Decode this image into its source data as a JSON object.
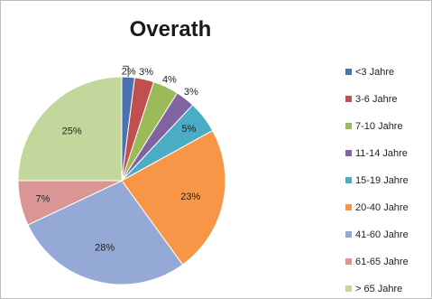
{
  "chart_data": {
    "type": "pie",
    "title": "Overath",
    "categories": [
      "<3 Jahre",
      "3-6 Jahre",
      "7-10 Jahre",
      "11-14 Jahre",
      "15-19 Jahre",
      "20-40 Jahre",
      "41-60 Jahre",
      "61-65 Jahre",
      "> 65 Jahre"
    ],
    "values": [
      2,
      3,
      4,
      3,
      5,
      23,
      28,
      7,
      25
    ],
    "value_labels": [
      "2%",
      "3%",
      "4%",
      "3%",
      "5%",
      "23%",
      "28%",
      "7%",
      "25%"
    ],
    "colors": [
      "#4a72b0",
      "#c0504d",
      "#9bbb59",
      "#8064a2",
      "#4bacc6",
      "#f79646",
      "#95a9d6",
      "#d99694",
      "#c3d69b"
    ],
    "legend_position": "right",
    "start_angle": "top, clockwise"
  }
}
